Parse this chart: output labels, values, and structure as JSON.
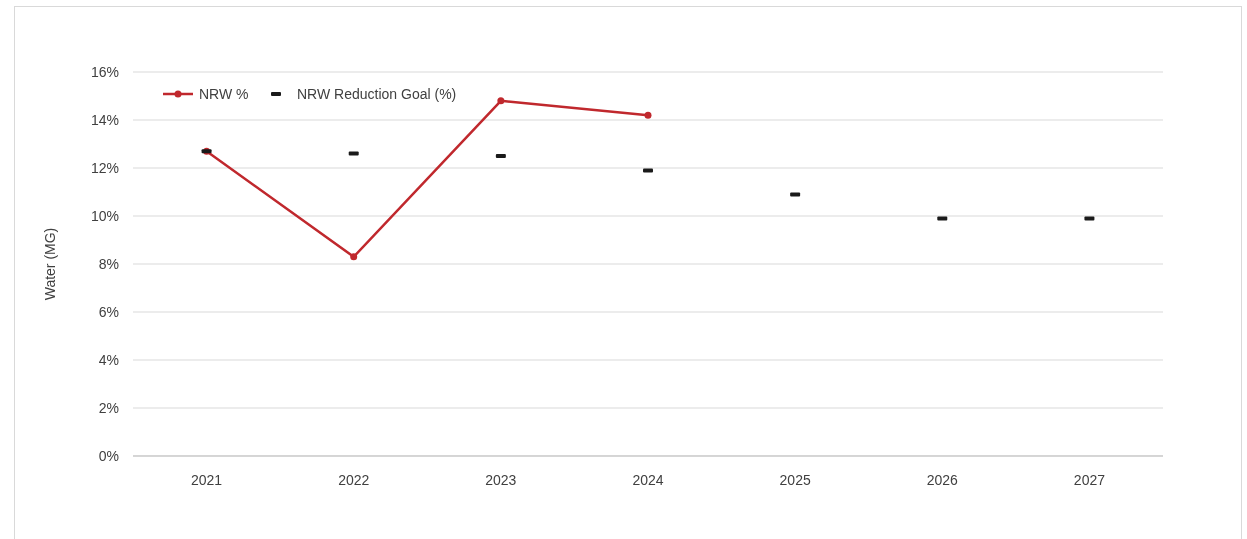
{
  "chart_data": {
    "type": "line",
    "ylabel": "Water (MG)",
    "categories": [
      "2021",
      "2022",
      "2023",
      "2024",
      "2025",
      "2026",
      "2027"
    ],
    "series": [
      {
        "name": "NRW %",
        "color": "#c0282d",
        "values": [
          12.7,
          8.3,
          14.8,
          14.2,
          null,
          null,
          null
        ],
        "marker": "circle"
      },
      {
        "name": "NRW Reduction Goal (%)",
        "type": "scatter",
        "color": "#1a1a1a",
        "values": [
          12.7,
          12.6,
          12.5,
          11.9,
          10.9,
          9.9,
          9.9
        ],
        "marker": "square"
      }
    ],
    "ylim": [
      0,
      16
    ],
    "yticks": [
      {
        "value": 0,
        "label": "0%"
      },
      {
        "value": 2,
        "label": "2%"
      },
      {
        "value": 4,
        "label": "4%"
      },
      {
        "value": 6,
        "label": "6%"
      },
      {
        "value": 8,
        "label": "8%"
      },
      {
        "value": 10,
        "label": "10%"
      },
      {
        "value": 12,
        "label": "12%"
      },
      {
        "value": 14,
        "label": "14%"
      },
      {
        "value": 16,
        "label": "16%"
      }
    ],
    "grid": "y",
    "legend": "top left"
  }
}
